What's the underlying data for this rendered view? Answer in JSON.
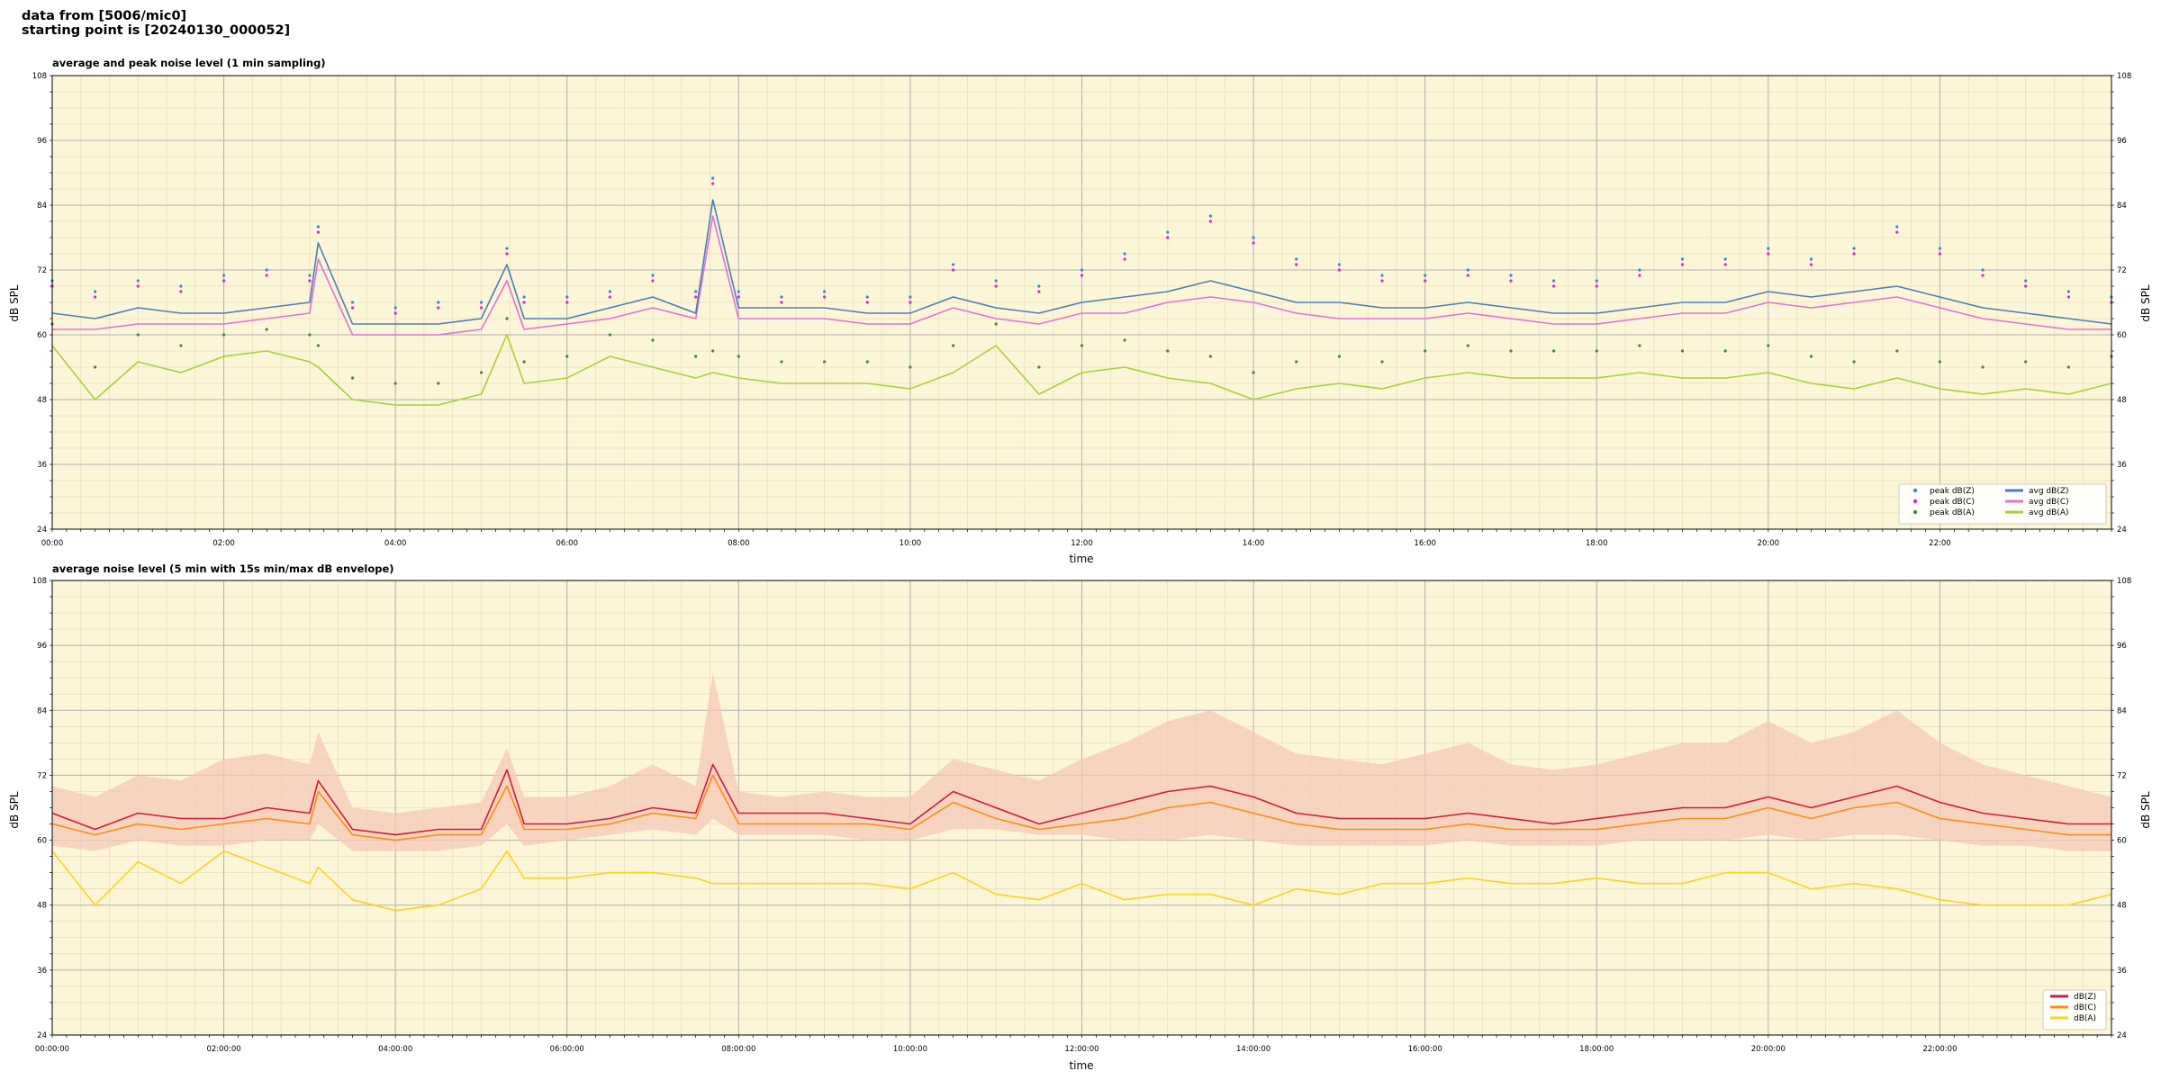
{
  "header": {
    "line1": "data from [5006/mic0]",
    "line2": "starting point is [20240130_000052]"
  },
  "colors": {
    "background": "#fdf5d7",
    "grid_major": "#b0b0b0",
    "grid_minor": "#e8dfb8",
    "peak_z": "#3a85d6",
    "peak_c": "#e11fd8",
    "peak_a": "#3a8a3a",
    "avg_z": "#4a7fb5",
    "avg_c": "#e070d8",
    "avg_a": "#a8cf3a",
    "dbz": "#d01a3a",
    "dbc": "#ff8a10",
    "dba": "#ffd21a",
    "envelope": "#f4c8b8"
  },
  "chart_data": [
    {
      "type": "line",
      "title": "average and peak noise level (1 min sampling)",
      "xlabel": "time",
      "ylabel": "dB SPL",
      "ylim": [
        24,
        108
      ],
      "xlim_hours": [
        0,
        24
      ],
      "yticks": [
        "24",
        "36",
        "48",
        "60",
        "72",
        "84",
        "96",
        "108"
      ],
      "xticks": [
        "00:00",
        "02:00",
        "04:00",
        "06:00",
        "08:00",
        "10:00",
        "12:00",
        "14:00",
        "16:00",
        "18:00",
        "20:00",
        "22:00"
      ],
      "grid": true,
      "legend_position": "lower-right",
      "legend": [
        {
          "label": "peak dB(Z)",
          "kind": "marker",
          "color_key": "peak_z"
        },
        {
          "label": "peak dB(C)",
          "kind": "marker",
          "color_key": "peak_c"
        },
        {
          "label": "peak dB(A)",
          "kind": "marker",
          "color_key": "peak_a"
        },
        {
          "label": "avg dB(Z)",
          "kind": "line",
          "color_key": "avg_z"
        },
        {
          "label": "avg dB(C)",
          "kind": "line",
          "color_key": "avg_c"
        },
        {
          "label": "avg dB(A)",
          "kind": "line",
          "color_key": "avg_a"
        }
      ],
      "x": [
        0.0,
        0.5,
        1.0,
        1.5,
        2.0,
        2.5,
        3.0,
        3.1,
        3.5,
        4.0,
        4.5,
        5.0,
        5.3,
        5.5,
        6.0,
        6.5,
        7.0,
        7.5,
        7.7,
        8.0,
        8.5,
        9.0,
        9.5,
        10.0,
        10.5,
        11.0,
        11.5,
        12.0,
        12.5,
        13.0,
        13.5,
        14.0,
        14.5,
        15.0,
        15.5,
        16.0,
        16.5,
        17.0,
        17.5,
        18.0,
        18.5,
        19.0,
        19.5,
        20.0,
        20.5,
        21.0,
        21.5,
        22.0,
        22.5,
        23.0,
        23.5,
        24.0
      ],
      "series": [
        {
          "name": "avg dB(Z)",
          "color_key": "avg_z",
          "style": "line",
          "values": [
            64,
            63,
            65,
            64,
            64,
            65,
            66,
            77,
            62,
            62,
            62,
            63,
            73,
            63,
            63,
            65,
            67,
            64,
            85,
            65,
            65,
            65,
            64,
            64,
            67,
            65,
            64,
            66,
            67,
            68,
            70,
            68,
            66,
            66,
            65,
            65,
            66,
            65,
            64,
            64,
            65,
            66,
            66,
            68,
            67,
            68,
            69,
            67,
            65,
            64,
            63,
            62
          ]
        },
        {
          "name": "avg dB(C)",
          "color_key": "avg_c",
          "style": "line",
          "values": [
            61,
            61,
            62,
            62,
            62,
            63,
            64,
            74,
            60,
            60,
            60,
            61,
            70,
            61,
            62,
            63,
            65,
            63,
            82,
            63,
            63,
            63,
            62,
            62,
            65,
            63,
            62,
            64,
            64,
            66,
            67,
            66,
            64,
            63,
            63,
            63,
            64,
            63,
            62,
            62,
            63,
            64,
            64,
            66,
            65,
            66,
            67,
            65,
            63,
            62,
            61,
            61
          ]
        },
        {
          "name": "avg dB(A)",
          "color_key": "avg_a",
          "style": "line",
          "values": [
            58,
            48,
            55,
            53,
            56,
            57,
            55,
            54,
            48,
            47,
            47,
            49,
            60,
            51,
            52,
            56,
            54,
            52,
            53,
            52,
            51,
            51,
            51,
            50,
            53,
            58,
            49,
            53,
            54,
            52,
            51,
            48,
            50,
            51,
            50,
            52,
            53,
            52,
            52,
            52,
            53,
            52,
            52,
            53,
            51,
            50,
            52,
            50,
            49,
            50,
            49,
            51
          ]
        },
        {
          "name": "peak dB(Z)",
          "color_key": "peak_z",
          "style": "marker",
          "values": [
            70,
            68,
            70,
            69,
            71,
            72,
            71,
            80,
            66,
            65,
            66,
            66,
            76,
            67,
            67,
            68,
            71,
            68,
            89,
            68,
            67,
            68,
            67,
            67,
            73,
            70,
            69,
            72,
            75,
            79,
            82,
            78,
            74,
            73,
            71,
            71,
            72,
            71,
            70,
            70,
            72,
            74,
            74,
            76,
            74,
            76,
            80,
            76,
            72,
            70,
            68,
            67
          ]
        },
        {
          "name": "peak dB(C)",
          "color_key": "peak_c",
          "style": "marker",
          "values": [
            69,
            67,
            69,
            68,
            70,
            71,
            70,
            79,
            65,
            64,
            65,
            65,
            75,
            66,
            66,
            67,
            70,
            67,
            88,
            67,
            66,
            67,
            66,
            66,
            72,
            69,
            68,
            71,
            74,
            78,
            81,
            77,
            73,
            72,
            70,
            70,
            71,
            70,
            69,
            69,
            71,
            73,
            73,
            75,
            73,
            75,
            79,
            75,
            71,
            69,
            67,
            66
          ]
        },
        {
          "name": "peak dB(A)",
          "color_key": "peak_a",
          "style": "marker",
          "values": [
            62,
            54,
            60,
            58,
            60,
            61,
            60,
            58,
            52,
            51,
            51,
            53,
            63,
            55,
            56,
            60,
            59,
            56,
            57,
            56,
            55,
            55,
            55,
            54,
            58,
            62,
            54,
            58,
            59,
            57,
            56,
            53,
            55,
            56,
            55,
            57,
            58,
            57,
            57,
            57,
            58,
            57,
            57,
            58,
            56,
            55,
            57,
            55,
            54,
            55,
            54,
            56
          ]
        }
      ]
    },
    {
      "type": "line",
      "title": "average noise level (5 min with 15s min/max dB envelope)",
      "xlabel": "time",
      "ylabel": "dB SPL",
      "ylim": [
        24,
        108
      ],
      "xlim_hours": [
        0,
        24
      ],
      "yticks": [
        "24",
        "36",
        "48",
        "60",
        "72",
        "84",
        "96",
        "108"
      ],
      "xticks": [
        "00:00:00",
        "02:00:00",
        "04:00:00",
        "06:00:00",
        "08:00:00",
        "10:00:00",
        "12:00:00",
        "14:00:00",
        "16:00:00",
        "18:00:00",
        "20:00:00",
        "22:00:00"
      ],
      "grid": true,
      "legend_position": "lower-right",
      "legend": [
        {
          "label": "dB(Z)",
          "kind": "line",
          "color_key": "dbz"
        },
        {
          "label": "dB(C)",
          "kind": "line",
          "color_key": "dbc"
        },
        {
          "label": "dB(A)",
          "kind": "line",
          "color_key": "dba"
        }
      ],
      "x": [
        0.0,
        0.5,
        1.0,
        1.5,
        2.0,
        2.5,
        3.0,
        3.1,
        3.5,
        4.0,
        4.5,
        5.0,
        5.3,
        5.5,
        6.0,
        6.5,
        7.0,
        7.5,
        7.7,
        8.0,
        8.5,
        9.0,
        9.5,
        10.0,
        10.5,
        11.0,
        11.5,
        12.0,
        12.5,
        13.0,
        13.5,
        14.0,
        14.5,
        15.0,
        15.5,
        16.0,
        16.5,
        17.0,
        17.5,
        18.0,
        18.5,
        19.0,
        19.5,
        20.0,
        20.5,
        21.0,
        21.5,
        22.0,
        22.5,
        23.0,
        23.5,
        24.0
      ],
      "envelope": {
        "name": "envelope",
        "color_key": "envelope",
        "min": [
          59,
          58,
          60,
          59,
          59,
          60,
          60,
          63,
          58,
          58,
          58,
          59,
          63,
          59,
          60,
          61,
          62,
          61,
          64,
          61,
          61,
          61,
          60,
          60,
          62,
          62,
          61,
          61,
          60,
          60,
          61,
          60,
          59,
          59,
          59,
          59,
          60,
          59,
          59,
          59,
          60,
          60,
          60,
          61,
          60,
          61,
          61,
          60,
          59,
          59,
          58,
          58
        ],
        "max": [
          70,
          68,
          72,
          71,
          75,
          76,
          74,
          80,
          66,
          65,
          66,
          67,
          77,
          68,
          68,
          70,
          74,
          70,
          91,
          69,
          68,
          69,
          68,
          68,
          75,
          73,
          71,
          75,
          78,
          82,
          84,
          80,
          76,
          75,
          74,
          76,
          78,
          74,
          73,
          74,
          76,
          78,
          78,
          82,
          78,
          80,
          84,
          78,
          74,
          72,
          70,
          68
        ]
      },
      "series": [
        {
          "name": "dB(Z)",
          "color_key": "dbz",
          "style": "line",
          "values": [
            65,
            62,
            65,
            64,
            64,
            66,
            65,
            71,
            62,
            61,
            62,
            62,
            73,
            63,
            63,
            64,
            66,
            65,
            74,
            65,
            65,
            65,
            64,
            63,
            69,
            66,
            63,
            65,
            67,
            69,
            70,
            68,
            65,
            64,
            64,
            64,
            65,
            64,
            63,
            64,
            65,
            66,
            66,
            68,
            66,
            68,
            70,
            67,
            65,
            64,
            63,
            63
          ]
        },
        {
          "name": "dB(C)",
          "color_key": "dbc",
          "style": "line",
          "values": [
            63,
            61,
            63,
            62,
            63,
            64,
            63,
            69,
            61,
            60,
            61,
            61,
            70,
            62,
            62,
            63,
            65,
            64,
            72,
            63,
            63,
            63,
            63,
            62,
            67,
            64,
            62,
            63,
            64,
            66,
            67,
            65,
            63,
            62,
            62,
            62,
            63,
            62,
            62,
            62,
            63,
            64,
            64,
            66,
            64,
            66,
            67,
            64,
            63,
            62,
            61,
            61
          ]
        },
        {
          "name": "dB(A)",
          "color_key": "dba",
          "style": "line",
          "values": [
            58,
            48,
            56,
            52,
            58,
            55,
            52,
            55,
            49,
            47,
            48,
            51,
            58,
            53,
            53,
            54,
            54,
            53,
            52,
            52,
            52,
            52,
            52,
            51,
            54,
            50,
            49,
            52,
            49,
            50,
            50,
            48,
            51,
            50,
            52,
            52,
            53,
            52,
            52,
            53,
            52,
            52,
            54,
            54,
            51,
            52,
            51,
            49,
            48,
            48,
            48,
            50
          ]
        }
      ]
    }
  ]
}
